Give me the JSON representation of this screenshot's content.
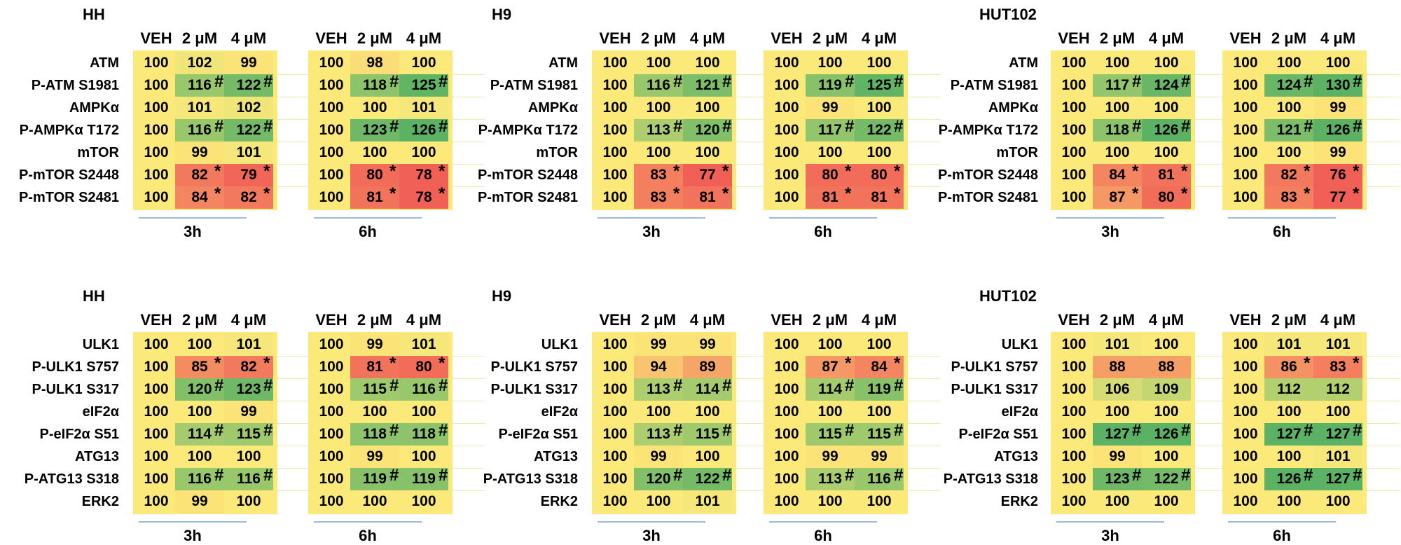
{
  "headers": [
    "VEH",
    "2 μM",
    "4 μM"
  ],
  "times": [
    "3h",
    "6h"
  ],
  "chart_data": [
    {
      "type": "table",
      "cell": "HH",
      "rows": [
        "ATM",
        "P-ATM S1981",
        "AMPKα",
        "P-AMPKα T172",
        "mTOR",
        "P-mTOR S2448",
        "P-mTOR S2481"
      ],
      "blocks": [
        {
          "time": "3h",
          "values": [
            [
              100,
              102,
              99
            ],
            [
              100,
              116,
              122
            ],
            [
              100,
              101,
              102
            ],
            [
              100,
              116,
              122
            ],
            [
              100,
              99,
              101
            ],
            [
              100,
              82,
              79
            ],
            [
              100,
              84,
              82
            ]
          ],
          "marks": [
            [
              "",
              "",
              ""
            ],
            [
              "",
              "#",
              "#"
            ],
            [
              "",
              "",
              ""
            ],
            [
              "",
              "#",
              "#"
            ],
            [
              "",
              "",
              ""
            ],
            [
              "",
              "*",
              "*"
            ],
            [
              "",
              "*",
              "*"
            ]
          ]
        },
        {
          "time": "6h",
          "values": [
            [
              100,
              98,
              100
            ],
            [
              100,
              118,
              125
            ],
            [
              100,
              100,
              101
            ],
            [
              100,
              123,
              126
            ],
            [
              100,
              100,
              100
            ],
            [
              100,
              80,
              78
            ],
            [
              100,
              81,
              78
            ]
          ],
          "marks": [
            [
              "",
              "",
              ""
            ],
            [
              "",
              "#",
              "#"
            ],
            [
              "",
              "",
              ""
            ],
            [
              "",
              "#",
              "#"
            ],
            [
              "",
              "",
              ""
            ],
            [
              "",
              "*",
              "*"
            ],
            [
              "",
              "*",
              "*"
            ]
          ]
        }
      ]
    },
    {
      "type": "table",
      "cell": "H9",
      "rows": [
        "ATM",
        "P-ATM S1981",
        "AMPKα",
        "P-AMPKα T172",
        "mTOR",
        "P-mTOR S2448",
        "P-mTOR S2481"
      ],
      "blocks": [
        {
          "time": "3h",
          "values": [
            [
              100,
              100,
              100
            ],
            [
              100,
              116,
              121
            ],
            [
              100,
              100,
              100
            ],
            [
              100,
              113,
              120
            ],
            [
              100,
              100,
              100
            ],
            [
              100,
              83,
              77
            ],
            [
              100,
              83,
              81
            ]
          ],
          "marks": [
            [
              "",
              "",
              ""
            ],
            [
              "",
              "#",
              "#"
            ],
            [
              "",
              "",
              ""
            ],
            [
              "",
              "#",
              "#"
            ],
            [
              "",
              "",
              ""
            ],
            [
              "",
              "*",
              "*"
            ],
            [
              "",
              "*",
              "*"
            ]
          ]
        },
        {
          "time": "6h",
          "values": [
            [
              100,
              100,
              100
            ],
            [
              100,
              119,
              125
            ],
            [
              100,
              99,
              100
            ],
            [
              100,
              117,
              122
            ],
            [
              100,
              100,
              100
            ],
            [
              100,
              80,
              80
            ],
            [
              100,
              81,
              81
            ]
          ],
          "marks": [
            [
              "",
              "",
              ""
            ],
            [
              "",
              "#",
              "#"
            ],
            [
              "",
              "",
              ""
            ],
            [
              "",
              "#",
              "#"
            ],
            [
              "",
              "",
              ""
            ],
            [
              "",
              "*",
              "*"
            ],
            [
              "",
              "*",
              "*"
            ]
          ]
        }
      ]
    },
    {
      "type": "table",
      "cell": "HUT102",
      "rows": [
        "ATM",
        "P-ATM S1981",
        "AMPKα",
        "P-AMPKα T172",
        "mTOR",
        "P-mTOR S2448",
        "P-mTOR S2481"
      ],
      "blocks": [
        {
          "time": "3h",
          "values": [
            [
              100,
              100,
              100
            ],
            [
              100,
              117,
              124
            ],
            [
              100,
              100,
              100
            ],
            [
              100,
              118,
              126
            ],
            [
              100,
              100,
              100
            ],
            [
              100,
              84,
              81
            ],
            [
              100,
              87,
              80
            ]
          ],
          "marks": [
            [
              "",
              "",
              ""
            ],
            [
              "",
              "#",
              "#"
            ],
            [
              "",
              "",
              ""
            ],
            [
              "",
              "#",
              "#"
            ],
            [
              "",
              "",
              ""
            ],
            [
              "",
              "*",
              "*"
            ],
            [
              "",
              "*",
              "*"
            ]
          ]
        },
        {
          "time": "6h",
          "values": [
            [
              100,
              100,
              100
            ],
            [
              100,
              124,
              130
            ],
            [
              100,
              100,
              99
            ],
            [
              100,
              121,
              126
            ],
            [
              100,
              100,
              99
            ],
            [
              100,
              82,
              76
            ],
            [
              100,
              83,
              77
            ]
          ],
          "marks": [
            [
              "",
              "",
              ""
            ],
            [
              "",
              "#",
              "#"
            ],
            [
              "",
              "",
              ""
            ],
            [
              "",
              "#",
              "#"
            ],
            [
              "",
              "",
              ""
            ],
            [
              "",
              "*",
              "*"
            ],
            [
              "",
              "*",
              "*"
            ]
          ]
        }
      ]
    },
    {
      "type": "table",
      "cell": "HH",
      "rows": [
        "ULK1",
        "P-ULK1 S757",
        "P-ULK1 S317",
        "eIF2α",
        "P-eIF2α S51",
        "ATG13",
        "P-ATG13 S318",
        "ERK2"
      ],
      "blocks": [
        {
          "time": "3h",
          "values": [
            [
              100,
              100,
              101
            ],
            [
              100,
              85,
              82
            ],
            [
              100,
              120,
              123
            ],
            [
              100,
              100,
              99
            ],
            [
              100,
              114,
              115
            ],
            [
              100,
              100,
              100
            ],
            [
              100,
              116,
              116
            ],
            [
              100,
              99,
              100
            ]
          ],
          "marks": [
            [
              "",
              "",
              ""
            ],
            [
              "",
              "*",
              "*"
            ],
            [
              "",
              "#",
              "#"
            ],
            [
              "",
              "",
              ""
            ],
            [
              "",
              "#",
              "#"
            ],
            [
              "",
              "",
              ""
            ],
            [
              "",
              "#",
              "#"
            ],
            [
              "",
              "",
              ""
            ]
          ]
        },
        {
          "time": "6h",
          "values": [
            [
              100,
              99,
              101
            ],
            [
              100,
              81,
              80
            ],
            [
              100,
              115,
              116
            ],
            [
              100,
              100,
              100
            ],
            [
              100,
              118,
              118
            ],
            [
              100,
              99,
              100
            ],
            [
              100,
              119,
              119
            ],
            [
              100,
              100,
              100
            ]
          ],
          "marks": [
            [
              "",
              "",
              ""
            ],
            [
              "",
              "*",
              "*"
            ],
            [
              "",
              "#",
              "#"
            ],
            [
              "",
              "",
              ""
            ],
            [
              "",
              "#",
              "#"
            ],
            [
              "",
              "",
              ""
            ],
            [
              "",
              "#",
              "#"
            ],
            [
              "",
              "",
              ""
            ]
          ]
        }
      ]
    },
    {
      "type": "table",
      "cell": "H9",
      "rows": [
        "ULK1",
        "P-ULK1 S757",
        "P-ULK1 S317",
        "eIF2α",
        "P-eIF2α S51",
        "ATG13",
        "P-ATG13 S318",
        "ERK2"
      ],
      "blocks": [
        {
          "time": "3h",
          "values": [
            [
              100,
              99,
              99
            ],
            [
              100,
              94,
              89
            ],
            [
              100,
              113,
              114
            ],
            [
              100,
              100,
              100
            ],
            [
              100,
              113,
              115
            ],
            [
              100,
              99,
              100
            ],
            [
              100,
              120,
              122
            ],
            [
              100,
              100,
              101
            ]
          ],
          "marks": [
            [
              "",
              "",
              ""
            ],
            [
              "",
              "",
              ""
            ],
            [
              "",
              "#",
              "#"
            ],
            [
              "",
              "",
              ""
            ],
            [
              "",
              "#",
              "#"
            ],
            [
              "",
              "",
              ""
            ],
            [
              "",
              "#",
              "#"
            ],
            [
              "",
              "",
              ""
            ]
          ]
        },
        {
          "time": "6h",
          "values": [
            [
              100,
              100,
              100
            ],
            [
              100,
              87,
              84
            ],
            [
              100,
              114,
              119
            ],
            [
              100,
              100,
              100
            ],
            [
              100,
              115,
              115
            ],
            [
              100,
              99,
              99
            ],
            [
              100,
              113,
              116
            ],
            [
              100,
              100,
              100
            ]
          ],
          "marks": [
            [
              "",
              "",
              ""
            ],
            [
              "",
              "*",
              "*"
            ],
            [
              "",
              "#",
              "#"
            ],
            [
              "",
              "",
              ""
            ],
            [
              "",
              "#",
              "#"
            ],
            [
              "",
              "",
              ""
            ],
            [
              "",
              "#",
              "#"
            ],
            [
              "",
              "",
              ""
            ]
          ]
        }
      ]
    },
    {
      "type": "table",
      "cell": "HUT102",
      "rows": [
        "ULK1",
        "P-ULK1 S757",
        "P-ULK1 S317",
        "eIF2α",
        "P-eIF2α S51",
        "ATG13",
        "P-ATG13 S318",
        "ERK2"
      ],
      "blocks": [
        {
          "time": "3h",
          "values": [
            [
              100,
              101,
              100
            ],
            [
              100,
              88,
              88
            ],
            [
              100,
              106,
              109
            ],
            [
              100,
              100,
              100
            ],
            [
              100,
              127,
              126
            ],
            [
              100,
              99,
              100
            ],
            [
              100,
              123,
              122
            ],
            [
              100,
              100,
              100
            ]
          ],
          "marks": [
            [
              "",
              "",
              ""
            ],
            [
              "",
              "",
              ""
            ],
            [
              "",
              "",
              ""
            ],
            [
              "",
              "",
              ""
            ],
            [
              "",
              "#",
              "#"
            ],
            [
              "",
              "",
              ""
            ],
            [
              "",
              "#",
              "#"
            ],
            [
              "",
              "",
              ""
            ]
          ]
        },
        {
          "time": "6h",
          "values": [
            [
              100,
              101,
              101
            ],
            [
              100,
              86,
              83
            ],
            [
              100,
              112,
              112
            ],
            [
              100,
              100,
              100
            ],
            [
              100,
              127,
              127
            ],
            [
              100,
              100,
              101
            ],
            [
              100,
              126,
              127
            ],
            [
              100,
              100,
              100
            ]
          ],
          "marks": [
            [
              "",
              "",
              ""
            ],
            [
              "",
              "*",
              "*"
            ],
            [
              "",
              "",
              ""
            ],
            [
              "",
              "",
              ""
            ],
            [
              "",
              "#",
              "#"
            ],
            [
              "",
              "",
              ""
            ],
            [
              "",
              "#",
              "#"
            ],
            [
              "",
              "",
              ""
            ]
          ]
        }
      ]
    }
  ]
}
